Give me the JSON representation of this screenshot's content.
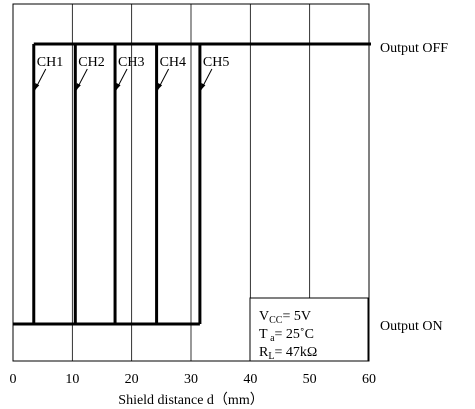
{
  "chart_data": {
    "type": "line",
    "xlabel": "Shield distance d（mm）",
    "xlim": [
      0,
      60
    ],
    "x_ticks": [
      "0",
      "10",
      "20",
      "30",
      "40",
      "50",
      "60"
    ],
    "grid": true,
    "state_labels": {
      "high": "Output OFF",
      "low": "Output ON"
    },
    "series": [
      {
        "name": "CH1",
        "threshold_mm": 3.5
      },
      {
        "name": "CH2",
        "threshold_mm": 10.5
      },
      {
        "name": "CH3",
        "threshold_mm": 17.2
      },
      {
        "name": "CH4",
        "threshold_mm": 24.2
      },
      {
        "name": "CH5",
        "threshold_mm": 31.5
      }
    ],
    "conditions": [
      {
        "main": "V",
        "sub": "CC",
        "rest": "= 5V"
      },
      {
        "main": "T",
        "sub": " a",
        "rest": "= 25˚C"
      },
      {
        "main": "R",
        "sub": "L",
        "rest": "= 47kΩ"
      }
    ]
  }
}
